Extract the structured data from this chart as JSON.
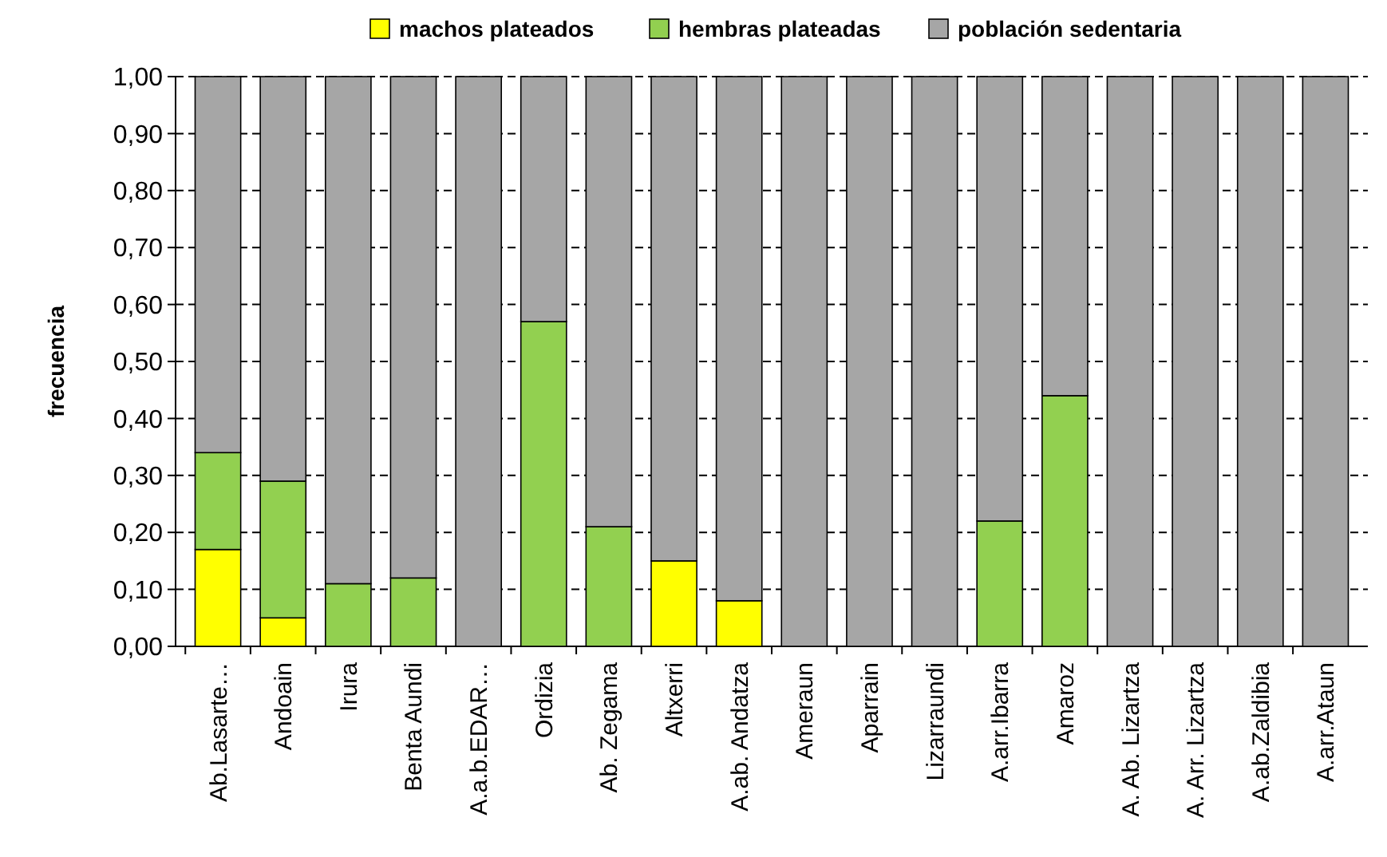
{
  "chart_data": {
    "type": "bar",
    "stacked": true,
    "ylabel": "frecuencia",
    "categories": [
      "Ab.Lasarte…",
      "Andoain",
      "Irura",
      "Benta Aundi",
      "A.a.b.EDAR…",
      "Ordizia",
      "Ab. Zegama",
      "Altxerri",
      "A.ab. Andatza",
      "Ameraun",
      "Aparrain",
      "Lizarraundi",
      "A.arr.Ibarra",
      "Amaroz",
      "A. Ab. Lizartza",
      "A. Arr. Lizartza",
      "A.ab.Zaldibia",
      "A.arr.Ataun"
    ],
    "series": [
      {
        "name": "machos plateados",
        "color": "#ffff00",
        "values": [
          0.17,
          0.05,
          0,
          0,
          0,
          0,
          0,
          0.15,
          0.08,
          0,
          0,
          0,
          0,
          0,
          0,
          0,
          0,
          0
        ]
      },
      {
        "name": "hembras plateadas",
        "color": "#92d050",
        "values": [
          0.17,
          0.24,
          0.11,
          0.12,
          0,
          0.57,
          0.21,
          0,
          0,
          0,
          0,
          0,
          0.22,
          0.44,
          0,
          0,
          0,
          0
        ]
      },
      {
        "name": "población sedentaria",
        "color": "#a6a6a6",
        "values": [
          0.66,
          0.71,
          0.89,
          0.88,
          1,
          0.43,
          0.79,
          0.85,
          0.92,
          1,
          1,
          1,
          0.78,
          0.56,
          1,
          1,
          1,
          1
        ]
      }
    ],
    "ylim": [
      0,
      1
    ],
    "yticks": [
      {
        "value": 0,
        "label": "0,00"
      },
      {
        "value": 0.1,
        "label": "0,10"
      },
      {
        "value": 0.2,
        "label": "0,20"
      },
      {
        "value": 0.3,
        "label": "0,30"
      },
      {
        "value": 0.4,
        "label": "0,40"
      },
      {
        "value": 0.5,
        "label": "0,50"
      },
      {
        "value": 0.6,
        "label": "0,60"
      },
      {
        "value": 0.7,
        "label": "0,70"
      },
      {
        "value": 0.8,
        "label": "0,80"
      },
      {
        "value": 0.9,
        "label": "0,90"
      },
      {
        "value": 1,
        "label": "1,00"
      }
    ],
    "grid": "y",
    "legend": "top"
  }
}
